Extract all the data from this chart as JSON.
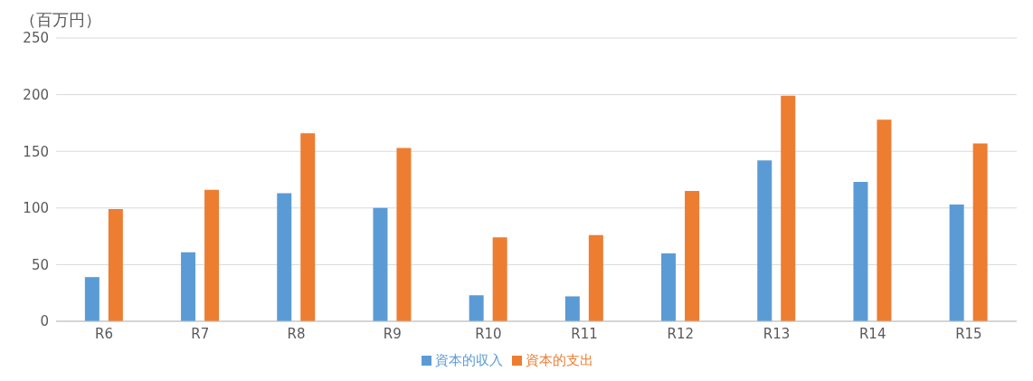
{
  "chart_data": {
    "type": "bar",
    "ylabel": "（百万円）",
    "categories": [
      "R6",
      "R7",
      "R8",
      "R9",
      "R10",
      "R11",
      "R12",
      "R13",
      "R14",
      "R15"
    ],
    "series": [
      {
        "name": "資本的収入",
        "color": "#5b9bd5",
        "values": [
          39,
          61,
          113,
          100,
          23,
          22,
          60,
          142,
          123,
          103
        ]
      },
      {
        "name": "資本的支出",
        "color": "#ed7d31",
        "values": [
          99,
          116,
          166,
          153,
          74,
          76,
          115,
          199,
          178,
          157
        ]
      }
    ],
    "ylim": [
      0,
      250
    ],
    "yticks": [
      0,
      50,
      100,
      150,
      200,
      250
    ],
    "grid": "y",
    "legend": "bottom"
  }
}
